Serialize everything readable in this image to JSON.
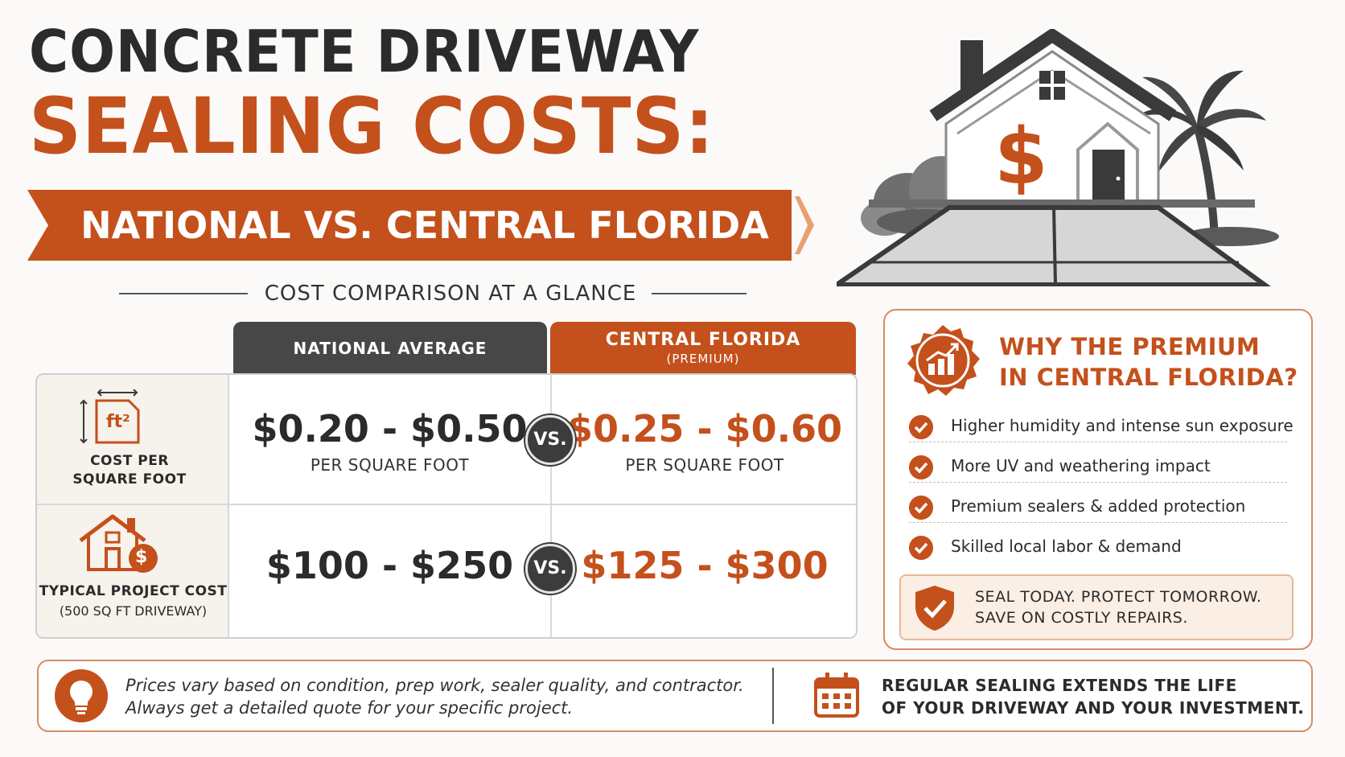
{
  "header": {
    "title_line1": "CONCRETE DRIVEWAY",
    "title_line2": "SEALING COSTS:",
    "subtitle": "NATIONAL VS. CENTRAL FLORIDA"
  },
  "section_label": "COST COMPARISON AT A GLANCE",
  "table": {
    "columns": {
      "national": "NATIONAL AVERAGE",
      "florida": "CENTRAL FLORIDA",
      "florida_note": "(PREMIUM)"
    },
    "vs_label": "VS.",
    "rows": [
      {
        "icon": "ft2-icon",
        "icon_text": "ft²",
        "label": "COST PER SQUARE FOOT",
        "sublabel": "",
        "national": "$0.20 - $0.50",
        "florida": "$0.25 - $0.60",
        "unit": "PER SQUARE FOOT"
      },
      {
        "icon": "house-dollar-icon",
        "icon_text": "$",
        "label": "TYPICAL PROJECT COST",
        "sublabel": "(500 SQ FT DRIVEWAY)",
        "national": "$100 - $250",
        "florida": "$125 - $300",
        "unit": ""
      }
    ]
  },
  "why": {
    "title": "WHY THE PREMIUM IN CENTRAL FLORIDA?",
    "title_line1": "WHY THE PREMIUM",
    "title_line2": "IN CENTRAL FLORIDA?",
    "items": [
      "Higher humidity and intense sun exposure",
      "More UV and weathering impact",
      "Premium sealers & added protection",
      "Skilled local labor & demand"
    ],
    "callout_line1": "SEAL TODAY. PROTECT TOMORROW.",
    "callout_line2": "SAVE ON COSTLY REPAIRS."
  },
  "footer": {
    "note_line1": "Prices vary based on condition, prep work, sealer quality, and contractor.",
    "note_line2": "Always get a detailed quote for your specific project.",
    "tip_line1": "REGULAR SEALING EXTENDS THE LIFE",
    "tip_line2": "OF YOUR DRIVEWAY AND YOUR INVESTMENT."
  },
  "hero_dollar": "$",
  "colors": {
    "accent": "#c4501c",
    "dark": "#474747",
    "text": "#2b2b2b"
  }
}
